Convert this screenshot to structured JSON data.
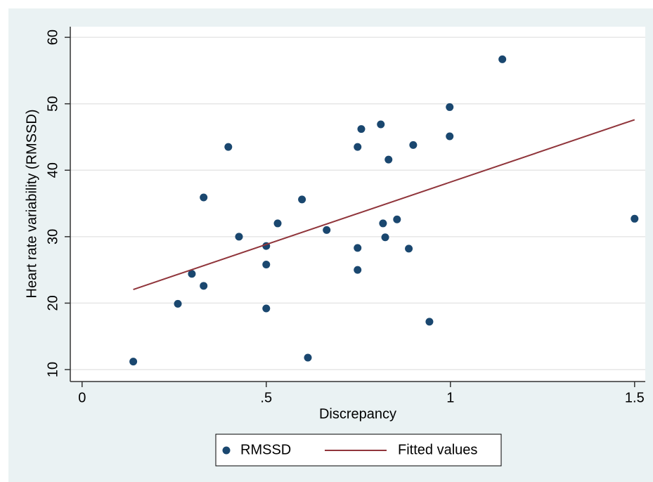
{
  "chart_data": {
    "type": "scatter",
    "x_label": "Discrepancy",
    "y_label": "Heart rate variability (RMSSD)",
    "xlim": [
      -0.032,
      1.529
    ],
    "ylim": [
      8.2,
      61.6
    ],
    "xticks": [
      0,
      {
        "value": 0.5,
        "label": ".5"
      },
      1,
      1.5
    ],
    "yticks": [
      10,
      20,
      30,
      40,
      50,
      60
    ],
    "grid": true,
    "legend": "bottom",
    "series": [
      {
        "name": "RMSSD",
        "type": "scatter",
        "color": "#1a476f",
        "x": [
          0.139,
          0.26,
          0.298,
          0.33,
          0.33,
          0.397,
          0.426,
          0.5,
          0.5,
          0.5,
          0.531,
          0.597,
          0.613,
          0.664,
          0.748,
          0.758,
          0.748,
          0.748,
          0.811,
          0.817,
          0.823,
          0.832,
          0.855,
          0.887,
          0.899,
          0.943,
          0.998,
          0.998,
          1.141,
          1.5
        ],
        "values": [
          11.2,
          19.9,
          24.4,
          22.6,
          35.9,
          43.5,
          30,
          28.6,
          25.8,
          19.2,
          32,
          35.6,
          11.8,
          31,
          43.5,
          46.2,
          28.3,
          25,
          46.9,
          32,
          29.9,
          41.6,
          32.6,
          28.2,
          43.8,
          17.2,
          49.5,
          45.1,
          56.7,
          32.7
        ]
      },
      {
        "name": "Fitted values",
        "type": "line",
        "color": "#90353b",
        "x": [
          0.139,
          1.5
        ],
        "values": [
          22.05,
          47.6
        ]
      }
    ]
  }
}
